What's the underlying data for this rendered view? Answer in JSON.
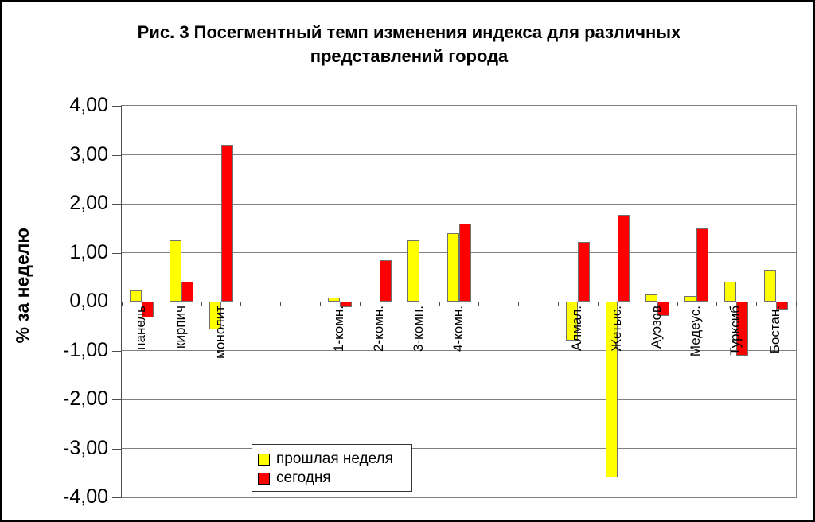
{
  "chart_data": {
    "type": "bar",
    "title": "Рис. 3 Посегментный темп изменения индекса для различных представлений города",
    "ylabel": "% за неделю",
    "ylim": [
      -4,
      4
    ],
    "ytick_labels": [
      "4,00",
      "3,00",
      "2,00",
      "1,00",
      "0,00",
      "-1,00",
      "-2,00",
      "-3,00",
      "-4,00"
    ],
    "grid": true,
    "legend_position": "inside-bottom-left",
    "categories": [
      "панель",
      "кирпич",
      "монолит",
      "",
      "",
      "1-комн.",
      "2-комн.",
      "3-комн.",
      "4-комн.",
      "",
      "",
      "Алмал.",
      "Жетыс.",
      "Ауэзов",
      "Медеус.",
      "Турксиб",
      "Бостан."
    ],
    "series": [
      {
        "name": "прошлая неделя",
        "color": "#FFFF00",
        "values": [
          0.22,
          1.25,
          -0.57,
          null,
          null,
          0.08,
          null,
          1.25,
          1.4,
          null,
          null,
          -0.8,
          -3.6,
          0.15,
          0.11,
          0.41,
          0.65
        ]
      },
      {
        "name": "сегодня",
        "color": "#FF0000",
        "values": [
          -0.33,
          0.4,
          3.2,
          null,
          null,
          -0.12,
          0.85,
          null,
          1.6,
          null,
          null,
          1.22,
          1.78,
          -0.29,
          1.5,
          -1.1,
          -0.16
        ]
      }
    ]
  },
  "legend": {
    "items": [
      {
        "label": "прошлая неделя",
        "color": "#FFFF00"
      },
      {
        "label": "сегодня",
        "color": "#FF0000"
      }
    ]
  }
}
